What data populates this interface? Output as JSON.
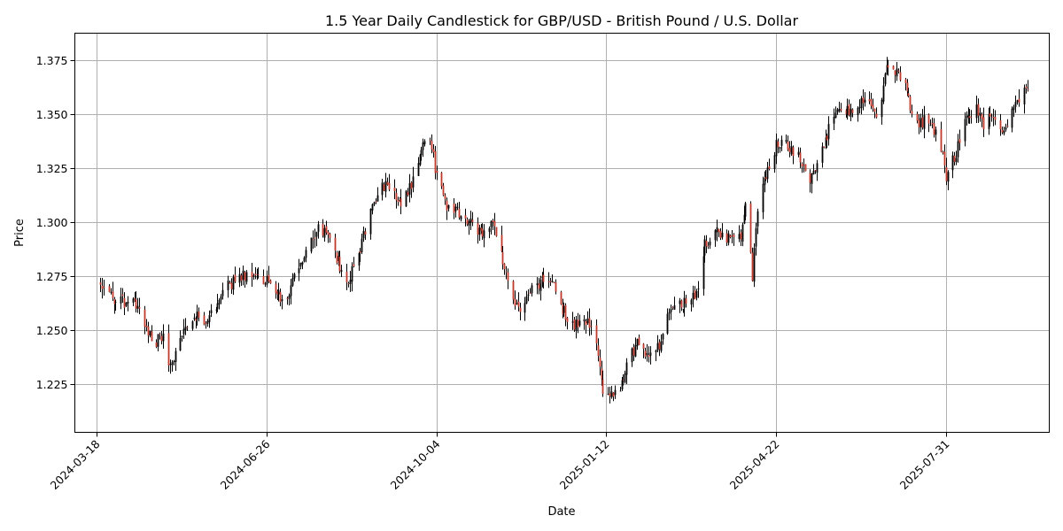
{
  "chart_data": {
    "type": "candlestick",
    "title": "1.5 Year Daily Candlestick for GBP/USD - British Pound / U.S. Dollar",
    "xlabel": "Date",
    "ylabel": "Price",
    "grid": true,
    "x_range": [
      "2024-03-05",
      "2025-09-30"
    ],
    "ylim": [
      1.2025,
      1.3875
    ],
    "x_ticks": [
      "2024-03-18",
      "2024-06-26",
      "2024-10-04",
      "2025-01-12",
      "2025-04-22",
      "2025-07-31"
    ],
    "y_ticks": [
      "1.225",
      "1.250",
      "1.275",
      "1.300",
      "1.325",
      "1.350",
      "1.375"
    ],
    "up_color": "#000000",
    "down_color": "#c0392b",
    "series_start_date": "2024-03-20",
    "series_end_date": "2025-09-17",
    "anchors": [
      [
        "2024-03-20",
        1.271
      ],
      [
        "2024-03-28",
        1.264
      ],
      [
        "2024-04-05",
        1.262
      ],
      [
        "2024-04-12",
        1.262
      ],
      [
        "2024-04-16",
        1.25
      ],
      [
        "2024-04-22",
        1.245
      ],
      [
        "2024-04-26",
        1.246
      ],
      [
        "2024-04-30",
        1.233
      ],
      [
        "2024-05-07",
        1.249
      ],
      [
        "2024-05-14",
        1.258
      ],
      [
        "2024-05-20",
        1.251
      ],
      [
        "2024-05-27",
        1.262
      ],
      [
        "2024-06-03",
        1.27
      ],
      [
        "2024-06-10",
        1.275
      ],
      [
        "2024-06-18",
        1.277
      ],
      [
        "2024-06-26",
        1.272
      ],
      [
        "2024-07-01",
        1.265
      ],
      [
        "2024-07-08",
        1.267
      ],
      [
        "2024-07-15",
        1.279
      ],
      [
        "2024-07-22",
        1.29
      ],
      [
        "2024-07-26",
        1.297
      ],
      [
        "2024-08-01",
        1.293
      ],
      [
        "2024-08-08",
        1.28
      ],
      [
        "2024-08-12",
        1.27
      ],
      [
        "2024-08-19",
        1.285
      ],
      [
        "2024-08-26",
        1.305
      ],
      [
        "2024-09-02",
        1.318
      ],
      [
        "2024-09-09",
        1.314
      ],
      [
        "2024-09-13",
        1.308
      ],
      [
        "2024-09-20",
        1.32
      ],
      [
        "2024-09-26",
        1.338
      ],
      [
        "2024-09-30",
        1.34
      ],
      [
        "2024-10-04",
        1.32
      ],
      [
        "2024-10-10",
        1.308
      ],
      [
        "2024-10-18",
        1.303
      ],
      [
        "2024-10-25",
        1.298
      ],
      [
        "2024-10-31",
        1.296
      ],
      [
        "2024-11-06",
        1.3
      ],
      [
        "2024-11-12",
        1.281
      ],
      [
        "2024-11-18",
        1.265
      ],
      [
        "2024-11-22",
        1.256
      ],
      [
        "2024-11-29",
        1.268
      ],
      [
        "2024-12-06",
        1.273
      ],
      [
        "2024-12-12",
        1.27
      ],
      [
        "2024-12-18",
        1.258
      ],
      [
        "2024-12-24",
        1.252
      ],
      [
        "2024-12-30",
        1.256
      ],
      [
        "2025-01-06",
        1.245
      ],
      [
        "2025-01-10",
        1.222
      ],
      [
        "2025-01-14",
        1.218
      ],
      [
        "2025-01-20",
        1.224
      ],
      [
        "2025-01-24",
        1.235
      ],
      [
        "2025-01-31",
        1.245
      ],
      [
        "2025-02-05",
        1.238
      ],
      [
        "2025-02-12",
        1.242
      ],
      [
        "2025-02-18",
        1.258
      ],
      [
        "2025-02-25",
        1.262
      ],
      [
        "2025-03-03",
        1.264
      ],
      [
        "2025-03-07",
        1.27
      ],
      [
        "2025-03-11",
        1.29
      ],
      [
        "2025-03-18",
        1.295
      ],
      [
        "2025-03-25",
        1.293
      ],
      [
        "2025-04-01",
        1.294
      ],
      [
        "2025-04-04",
        1.31
      ],
      [
        "2025-04-08",
        1.275
      ],
      [
        "2025-04-11",
        1.305
      ],
      [
        "2025-04-17",
        1.325
      ],
      [
        "2025-04-22",
        1.336
      ],
      [
        "2025-04-29",
        1.335
      ],
      [
        "2025-05-06",
        1.33
      ],
      [
        "2025-05-12",
        1.32
      ],
      [
        "2025-05-19",
        1.333
      ],
      [
        "2025-05-26",
        1.35
      ],
      [
        "2025-06-02",
        1.35
      ],
      [
        "2025-06-09",
        1.355
      ],
      [
        "2025-06-16",
        1.356
      ],
      [
        "2025-06-20",
        1.346
      ],
      [
        "2025-06-26",
        1.372
      ],
      [
        "2025-07-01",
        1.37
      ],
      [
        "2025-07-07",
        1.362
      ],
      [
        "2025-07-14",
        1.345
      ],
      [
        "2025-07-21",
        1.348
      ],
      [
        "2025-07-28",
        1.335
      ],
      [
        "2025-07-31",
        1.32
      ],
      [
        "2025-08-06",
        1.332
      ],
      [
        "2025-08-12",
        1.348
      ],
      [
        "2025-08-18",
        1.353
      ],
      [
        "2025-08-22",
        1.346
      ],
      [
        "2025-08-28",
        1.35
      ],
      [
        "2025-09-03",
        1.341
      ],
      [
        "2025-09-09",
        1.354
      ],
      [
        "2025-09-14",
        1.358
      ],
      [
        "2025-09-17",
        1.364
      ]
    ]
  }
}
